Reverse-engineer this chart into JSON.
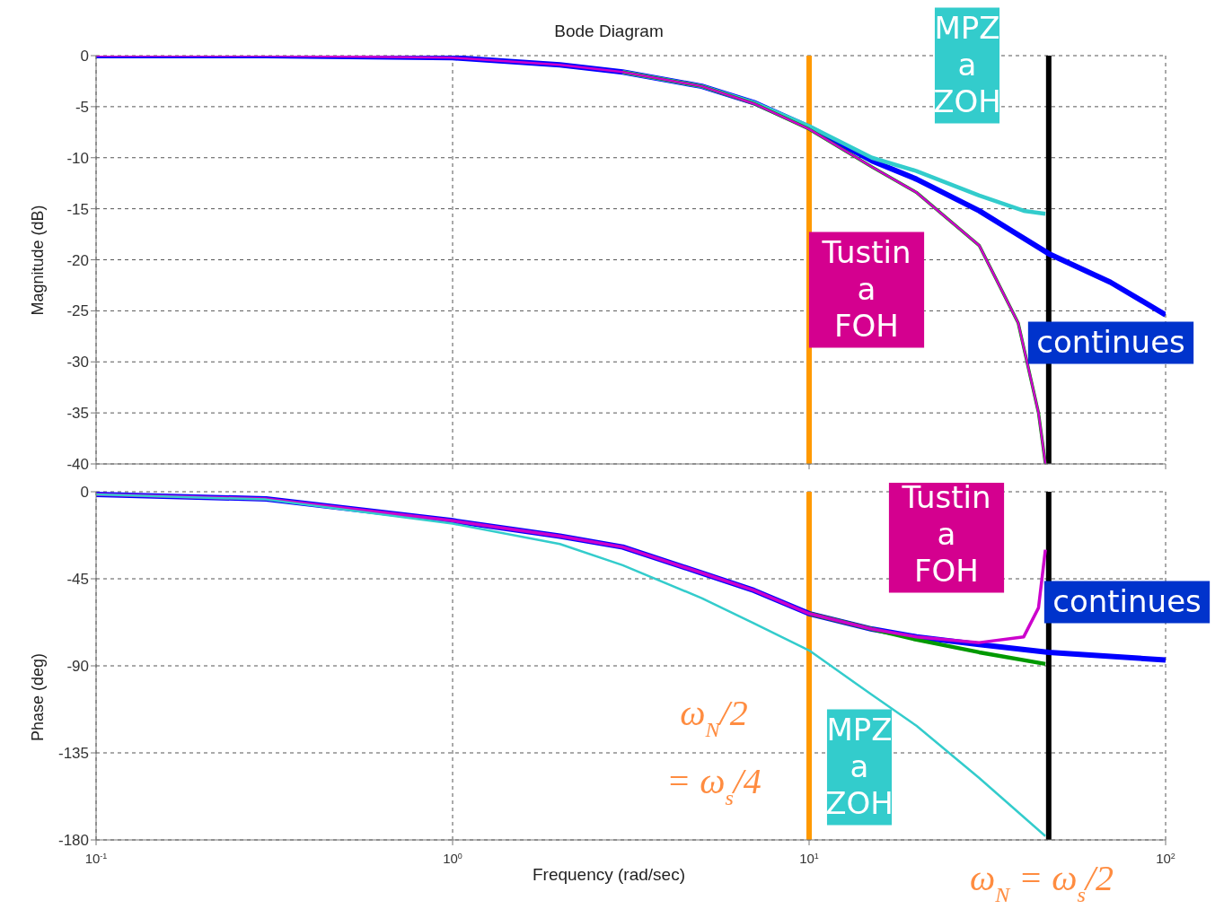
{
  "chart_data": [
    {
      "type": "line",
      "title": "Bode Diagram",
      "ylabel": "Magnitude (dB)",
      "log": "x",
      "xlim": [
        0.1,
        100
      ],
      "xticks": [
        0.1,
        1,
        10,
        100
      ],
      "ylim": [
        -40,
        0
      ],
      "yticks": [
        -40,
        -35,
        -30,
        -25,
        -20,
        -15,
        -10,
        -5,
        0
      ],
      "grid": true,
      "tick_labels": "y",
      "line_style": "solid",
      "marker": "none",
      "series": [
        {
          "color": "#0000ff",
          "x": [
            0.1,
            0.3,
            1,
            2,
            3,
            5,
            7,
            10,
            15,
            20,
            30,
            47,
            70,
            100
          ],
          "values": [
            0,
            0,
            -0.2,
            -0.9,
            -1.6,
            -3,
            -4.6,
            -7,
            -10.3,
            -12.1,
            -15.2,
            -19.4,
            -22.2,
            -25.4
          ]
        },
        {
          "color": "#33cccc",
          "x": [
            3,
            5,
            7,
            10,
            15,
            20,
            30,
            40,
            46
          ],
          "values": [
            -1.6,
            -3,
            -4.6,
            -6.9,
            -10,
            -11.3,
            -13.7,
            -15.2,
            -15.5
          ]
        },
        {
          "color": "#009900",
          "x": [
            3,
            5,
            7,
            10,
            15,
            20,
            30,
            38.6,
            44,
            46
          ],
          "values": [
            -1.6,
            -3,
            -4.7,
            -7.2,
            -10.9,
            -13.4,
            -18.6,
            -26.2,
            -35,
            -40
          ]
        },
        {
          "color": "#cc00cc",
          "x": [
            0.1,
            0.3,
            1,
            2,
            3,
            5,
            7,
            10,
            15,
            20,
            30,
            38.6,
            44,
            46
          ],
          "values": [
            0,
            0,
            -0.2,
            -0.9,
            -1.6,
            -3,
            -4.7,
            -7.2,
            -10.9,
            -13.4,
            -18.6,
            -26.2,
            -35,
            -40
          ]
        }
      ],
      "ref_lines": [
        {
          "axis": "x",
          "value": 10,
          "color": "#ff9900"
        },
        {
          "axis": "x",
          "value": 47,
          "color": "#000000"
        }
      ],
      "annotations": [
        "MPZ\na\nZOH",
        "Tustin\na\nFOH",
        "continues"
      ]
    },
    {
      "type": "line",
      "xlabel": "Frequency  (rad/sec)",
      "ylabel": "Phase (deg)",
      "log": "x",
      "xlim": [
        0.1,
        100
      ],
      "xticks": [
        {
          "value": 0.1,
          "label": "10$^{-1}$"
        },
        {
          "value": 1,
          "label": "10$^{0}$"
        },
        {
          "value": 10,
          "label": "10$^{1}$"
        },
        {
          "value": 100,
          "label": "10$^{2}$"
        }
      ],
      "ylim": [
        -180,
        0
      ],
      "yticks": [
        -180,
        -135,
        -90,
        -45,
        0
      ],
      "grid": true,
      "line_style": "solid",
      "marker": "none",
      "series": [
        {
          "color": "#0000ff",
          "x": [
            0.1,
            0.3,
            1,
            2,
            3,
            5,
            7,
            10,
            15,
            20,
            30,
            47,
            100
          ],
          "values": [
            -1.4,
            -3.7,
            -15,
            -23,
            -28.6,
            -42,
            -51,
            -63,
            -71,
            -75,
            -79,
            -83,
            -87
          ]
        },
        {
          "color": "#009900",
          "x": [
            10,
            15,
            20,
            30,
            46
          ],
          "values": [
            -63,
            -71,
            -76.5,
            -83,
            -89
          ]
        },
        {
          "color": "#cc00cc",
          "x": [
            0.1,
            0.3,
            1,
            2,
            3,
            5,
            7,
            10,
            15,
            20,
            30,
            40,
            44,
            46
          ],
          "values": [
            -1.4,
            -3.7,
            -15,
            -23,
            -28.6,
            -42,
            -51,
            -63,
            -71,
            -75,
            -78,
            -75,
            -60,
            -30
          ]
        },
        {
          "color": "#33cccc",
          "x": [
            0.1,
            0.3,
            1,
            2,
            3,
            5,
            7,
            10,
            15,
            20,
            30,
            46
          ],
          "values": [
            -1.4,
            -4,
            -16.5,
            -27,
            -38,
            -55,
            -68,
            -82,
            -105,
            -121,
            -148,
            -178
          ]
        }
      ],
      "ref_lines": [
        {
          "axis": "x",
          "value": 10,
          "color": "#ff9900"
        },
        {
          "axis": "x",
          "value": 47,
          "color": "#000000"
        }
      ],
      "annotations": [
        "Tustin\na\nFOH",
        "continues",
        "MPZ\na\nZOH",
        "ω$_{N}$/2\n= ω$_{s}$/4",
        "ω$_{N}$ = ω$_{s}$/2"
      ]
    }
  ]
}
